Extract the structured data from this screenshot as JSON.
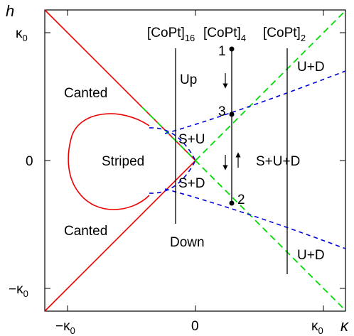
{
  "axes": {
    "x_name": "κ",
    "y_name": "h",
    "x_ticks": [
      "−κ",
      "0",
      "κ"
    ],
    "y_ticks": [
      "κ",
      "0",
      "−κ"
    ],
    "tick_subscript": "0"
  },
  "samples": {
    "s16": {
      "main": "[CoPt]",
      "sub": "16"
    },
    "s4": {
      "main": "[CoPt]",
      "sub": "4"
    },
    "s2": {
      "main": "[CoPt]",
      "sub": "2"
    }
  },
  "regions": {
    "canted_top": "Canted",
    "canted_bottom": "Canted",
    "striped": "Striped",
    "up": "Up",
    "down": "Down",
    "s_plus_u": "S+U",
    "s_plus_d": "S+D",
    "s_u_d": "S+U+D",
    "u_d_top": "U+D",
    "u_d_bottom": "U+D"
  },
  "points": [
    "1",
    "3",
    "2"
  ],
  "colors": {
    "canted_boundary": "#ee0000",
    "stripe_dashed": "#0000dd",
    "green_dashed": "#00dd00",
    "frame": "#000000"
  }
}
